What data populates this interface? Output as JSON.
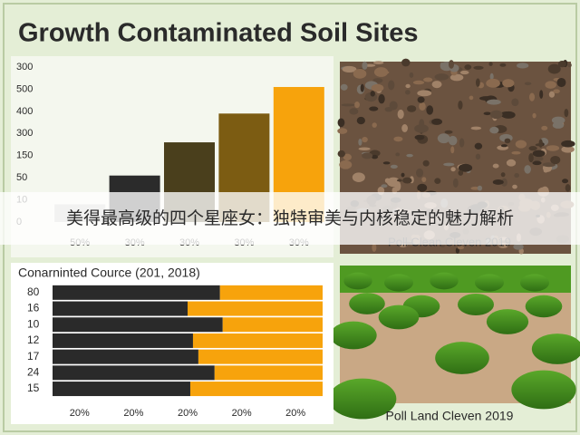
{
  "title": "Growth Contaminated Soil Sites",
  "banner": "美得最高级的四个星座女：独特审美与内核稳定的魅力解析",
  "chart_data": [
    {
      "type": "bar",
      "categories": [
        "50%",
        "30%",
        "30%",
        "30%",
        "30%"
      ],
      "values": [
        0.8,
        2.1,
        3.6,
        4.9,
        6.1
      ],
      "colors": [
        "#c4c4c0",
        "#2b2b2b",
        "#4a3f1c",
        "#7c5c12",
        "#f7a30c"
      ],
      "ylim": [
        0,
        7
      ],
      "yticks": [
        {
          "value": 0,
          "label": "0"
        },
        {
          "value": 1,
          "label": "10"
        },
        {
          "value": 2,
          "label": "50"
        },
        {
          "value": 3,
          "label": "150"
        },
        {
          "value": 4,
          "label": "300"
        },
        {
          "value": 5,
          "label": "400"
        },
        {
          "value": 6,
          "label": "500"
        },
        {
          "value": 7,
          "label": "300"
        }
      ]
    },
    {
      "type": "stacked-hbar",
      "title": "Conarninted Cource (201, 2018)",
      "categories": [
        "80",
        "16",
        "10",
        "12",
        "17",
        "24",
        "15"
      ],
      "series": [
        {
          "color": "#2a2a2a",
          "values": [
            62,
            50,
            63,
            52,
            54,
            60,
            51
          ]
        },
        {
          "color": "#f7a30c",
          "values": [
            38,
            50,
            37,
            48,
            46,
            40,
            49
          ]
        }
      ],
      "xlim": [
        0,
        100
      ],
      "xticks": [
        {
          "value": 10,
          "label": "20%"
        },
        {
          "value": 30,
          "label": "20%"
        },
        {
          "value": 50,
          "label": "20%"
        },
        {
          "value": 70,
          "label": "20%"
        },
        {
          "value": 90,
          "label": "20%"
        }
      ]
    }
  ],
  "photos": [
    {
      "caption": "Poll Clean Cleven 2019"
    },
    {
      "caption": "Poll Land Cleven 2019"
    }
  ]
}
